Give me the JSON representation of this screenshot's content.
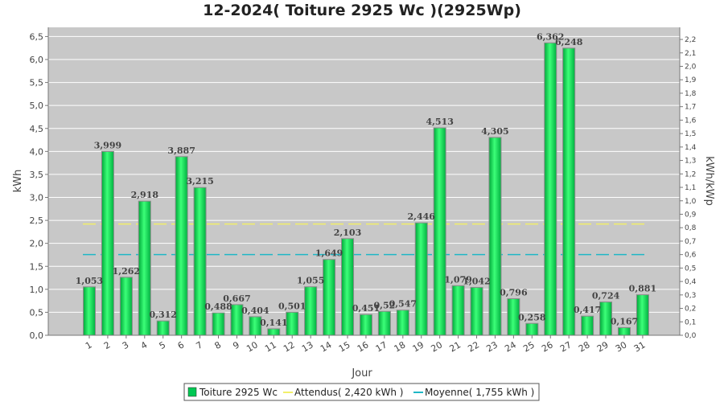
{
  "chart_data": {
    "type": "bar",
    "title": "12-2024( Toiture 2925 Wc )(2925Wp)",
    "xlabel": "Jour",
    "ylabel": "kWh",
    "ylabel_right": "kWh/kWp",
    "ylim": [
      0,
      6.7
    ],
    "ylim_right": [
      0,
      2.29
    ],
    "yticks": [
      "0,0",
      "0,5",
      "1,0",
      "1,5",
      "2,0",
      "2,5",
      "3,0",
      "3,5",
      "4,0",
      "4,5",
      "5,0",
      "5,5",
      "6,0",
      "6,5"
    ],
    "yticks_right": [
      "0,0",
      "0,1",
      "0,2",
      "0,3",
      "0,4",
      "0,5",
      "0,6",
      "0,7",
      "0,8",
      "0,9",
      "1,0",
      "1,1",
      "1,2",
      "1,3",
      "1,4",
      "1,5",
      "1,6",
      "1,7",
      "1,8",
      "1,9",
      "2,0",
      "2,1",
      "2,2"
    ],
    "categories": [
      "1",
      "2",
      "3",
      "4",
      "5",
      "6",
      "7",
      "8",
      "9",
      "10",
      "11",
      "12",
      "13",
      "14",
      "15",
      "16",
      "17",
      "18",
      "19",
      "20",
      "21",
      "22",
      "23",
      "24",
      "25",
      "26",
      "27",
      "28",
      "29",
      "30",
      "31"
    ],
    "values": [
      1.053,
      3.999,
      1.262,
      2.918,
      0.312,
      3.887,
      3.215,
      0.488,
      0.667,
      0.404,
      0.141,
      0.501,
      1.055,
      1.649,
      2.103,
      0.451,
      0.52,
      0.547,
      2.446,
      4.513,
      1.079,
      1.042,
      4.305,
      0.796,
      0.258,
      6.362,
      6.248,
      0.417,
      0.724,
      0.167,
      0.881
    ],
    "value_labels": [
      "1,053",
      "3,999",
      "1,262",
      "2,918",
      "0,312",
      "3,887",
      "3,215",
      "0,488",
      "0,667",
      "0,404",
      "0,141",
      "0,501",
      "1,055",
      "1,649",
      "2,103",
      "0,451",
      "0,52",
      "0,547",
      "2,446",
      "4,513",
      "1,079",
      "1,042",
      "4,305",
      "0,796",
      "0,258",
      "6,362",
      "6,248",
      "0,417",
      "0,724",
      "0,167",
      "0,881"
    ],
    "attendus": 2.42,
    "moyenne": 1.755,
    "grid": true,
    "legend_position": "bottom",
    "legend": [
      {
        "label": "Toiture 2925 Wc",
        "kind": "box",
        "color": "#00c853"
      },
      {
        "label": "Attendus( 2,420 kWh )",
        "kind": "line",
        "color": "#f2ef6a"
      },
      {
        "label": "Moyenne( 1,755 kWh )",
        "kind": "dash",
        "color": "#1fb7c6"
      }
    ],
    "colors": {
      "bar_fill_dark": "#00b040",
      "bar_fill_light": "#3cff78",
      "bar_stroke": "#8a8a8a",
      "plot_bg": "#c8c8c8",
      "grid": "#ffffff",
      "attendus": "#f2ef6a",
      "moyenne": "#1fb7c6"
    }
  }
}
